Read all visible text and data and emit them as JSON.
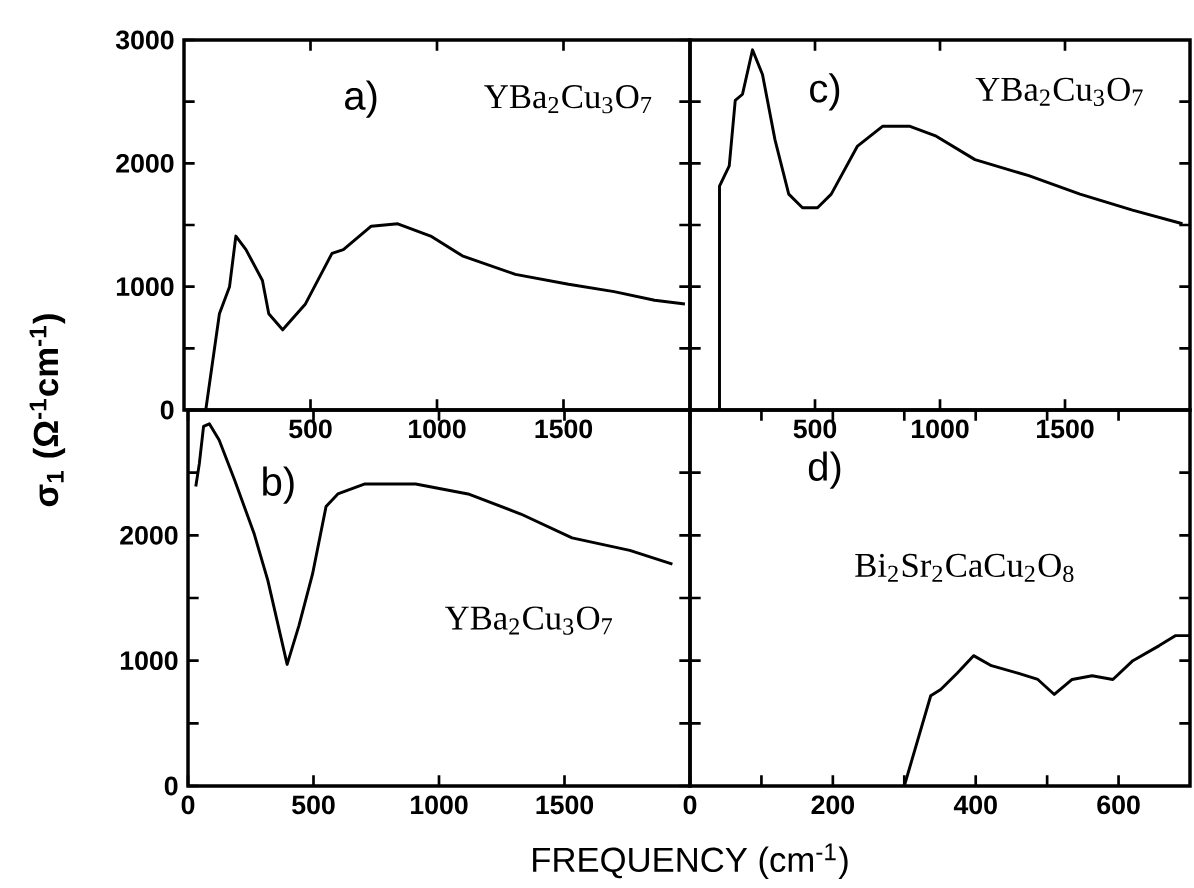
{
  "chart_data": [
    {
      "type": "line",
      "ylabel": "σ$_{1}$ (Ω$^{-1}$cm$^{-1}$)",
      "annotations": [
        "a)",
        "YBa$_{2}$Cu$_{3}$O$_{7}$"
      ],
      "xlim": [
        0,
        2000
      ],
      "ylim": [
        0,
        3000
      ],
      "xticks": [
        500,
        1000,
        1500
      ],
      "yticks": [
        0,
        {
          "value": 500,
          "label": null
        },
        1000,
        {
          "value": 1500,
          "label": null
        },
        2000,
        {
          "value": 2500,
          "label": null
        },
        3000
      ],
      "series": [
        {
          "color": "#000000",
          "x": [
            86,
            140,
            180,
            205,
            245,
            310,
            335,
            390,
            480,
            585,
            630,
            740,
            845,
            975,
            1100,
            1310,
            1520,
            1700,
            1860,
            1980
          ],
          "values": [
            0,
            780,
            1000,
            1410,
            1300,
            1050,
            780,
            650,
            860,
            1270,
            1300,
            1490,
            1510,
            1410,
            1250,
            1100,
            1020,
            960,
            890,
            860
          ]
        }
      ]
    },
    {
      "type": "line",
      "annotations": [
        "c)",
        "YBa$_{2}$Cu$_{3}$O$_{7}$"
      ],
      "xlim": [
        0,
        2000
      ],
      "ylim": [
        0,
        3000
      ],
      "xticks": [
        500,
        1000,
        1500
      ],
      "yticks": [
        {
          "value": 500,
          "label": null
        },
        {
          "value": 1000,
          "label": null
        },
        {
          "value": 1500,
          "label": null
        },
        {
          "value": 2000,
          "label": null
        },
        {
          "value": 2500,
          "label": null
        }
      ],
      "tick_labels": "x",
      "series": [
        {
          "color": "#000000",
          "x": [
            118,
            118,
            157,
            181,
            210,
            250,
            290,
            340,
            395,
            450,
            510,
            565,
            670,
            770,
            880,
            985,
            1140,
            1355,
            1560,
            1770,
            1970
          ],
          "values": [
            0,
            1815,
            1980,
            2510,
            2560,
            2920,
            2720,
            2190,
            1750,
            1640,
            1640,
            1750,
            2140,
            2300,
            2300,
            2220,
            2030,
            1900,
            1750,
            1620,
            1510
          ]
        }
      ]
    },
    {
      "type": "line",
      "annotations": [
        "b)",
        "YBa$_{2}$Cu$_{3}$O$_{7}$"
      ],
      "xlim": [
        0,
        2000
      ],
      "ylim": [
        0,
        3000
      ],
      "xticks": [
        0,
        500,
        1000,
        1500
      ],
      "yticks": [
        0,
        {
          "value": 500,
          "label": null
        },
        1000,
        {
          "value": 1500,
          "label": null
        },
        2000,
        {
          "value": 2500,
          "label": null
        }
      ],
      "series": [
        {
          "color": "#000000",
          "x": [
            31,
            45,
            62,
            85,
            124,
            186,
            264,
            318,
            395,
            442,
            496,
            550,
            597,
            705,
            907,
            1116,
            1326,
            1530,
            1760,
            1930
          ],
          "values": [
            2390,
            2570,
            2870,
            2890,
            2760,
            2440,
            2010,
            1640,
            970,
            1280,
            1690,
            2230,
            2330,
            2410,
            2410,
            2330,
            2170,
            1980,
            1880,
            1770
          ]
        }
      ]
    },
    {
      "type": "line",
      "xlabel": "FREQUENCY (cm$^{-1}$)",
      "annotations": [
        "d)",
        "Bi$_{2}$Sr$_{2}$CaCu$_{2}$O$_{8}$"
      ],
      "xlim": [
        0,
        700
      ],
      "ylim": [
        0,
        3000
      ],
      "xticks": [
        0,
        {
          "value": 100,
          "label": null
        },
        200,
        {
          "value": 300,
          "label": null
        },
        400,
        {
          "value": 500,
          "label": null
        },
        600
      ],
      "yticks": [
        {
          "value": 500,
          "label": null
        },
        {
          "value": 1000,
          "label": null
        },
        {
          "value": 1500,
          "label": null
        },
        {
          "value": 2000,
          "label": null
        },
        {
          "value": 2500,
          "label": null
        }
      ],
      "tick_labels": "x",
      "series": [
        {
          "color": "#000000",
          "x": [
            300,
            337,
            351,
            374,
            397,
            422,
            459,
            487,
            510,
            535,
            563,
            592,
            620,
            657,
            680,
            700
          ],
          "values": [
            0,
            720,
            770,
            900,
            1040,
            960,
            900,
            850,
            730,
            850,
            880,
            850,
            1000,
            1120,
            1200,
            1200
          ]
        }
      ]
    }
  ]
}
